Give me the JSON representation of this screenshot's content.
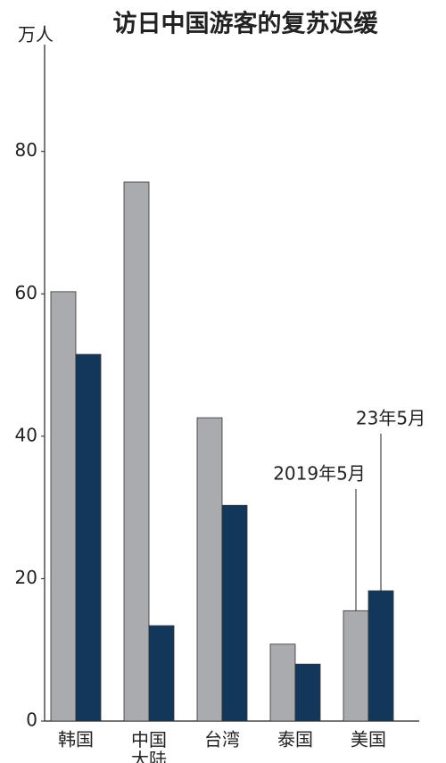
{
  "chart_data": {
    "type": "bar",
    "title": "访日中国游客的复苏迟缓",
    "y_label": "万人",
    "categories": [
      "韩国",
      "中国\n大陆",
      "台湾",
      "泰国",
      "美国"
    ],
    "series": [
      {
        "name": "2019年5月",
        "color": "#a9abae",
        "values": [
          60.3,
          75.7,
          42.6,
          10.8,
          15.5
        ]
      },
      {
        "name": "23年5月",
        "color": "#13375a",
        "values": [
          51.5,
          13.4,
          30.3,
          8.0,
          18.3
        ]
      }
    ],
    "ylim": [
      0,
      95
    ],
    "yticks": [
      0,
      20,
      40,
      60,
      80
    ],
    "grid": false
  }
}
